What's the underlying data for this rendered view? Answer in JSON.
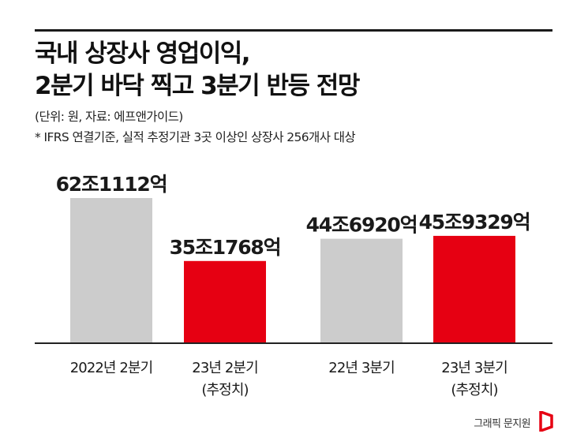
{
  "title": {
    "line1": "국내 상장사 영업이익,",
    "line2": "2분기 바닥 찍고 3분기 반등 전망"
  },
  "unit_note": "(단위: 원, 자료: 에프앤가이드)",
  "footnote": "* IFRS 연결기준, 실적 추정기관 3곳 이상인 상장사 256개사 대상",
  "credit": "그래픽 문지원",
  "colors": {
    "actual": "#cccccc",
    "estimate": "#e60012",
    "axis": "#222222",
    "text": "#1a1a1a"
  },
  "chart_data": {
    "type": "bar",
    "unit": "억원",
    "categories": [
      [
        "2022년 2분기"
      ],
      [
        "23년 2분기",
        "(추정치)"
      ],
      [
        "22년 3분기"
      ],
      [
        "23년 3분기",
        "(추정치)"
      ]
    ],
    "values": [
      621112,
      351768,
      446920,
      459329
    ],
    "data_labels": [
      "62조1112억",
      "35조1768억",
      "44조6920억",
      "45조9329억"
    ],
    "bar_colors": [
      "#cccccc",
      "#e60012",
      "#cccccc",
      "#e60012"
    ],
    "ylim": [
      0,
      621112
    ],
    "grid": false,
    "xlabel": "",
    "ylabel": ""
  }
}
